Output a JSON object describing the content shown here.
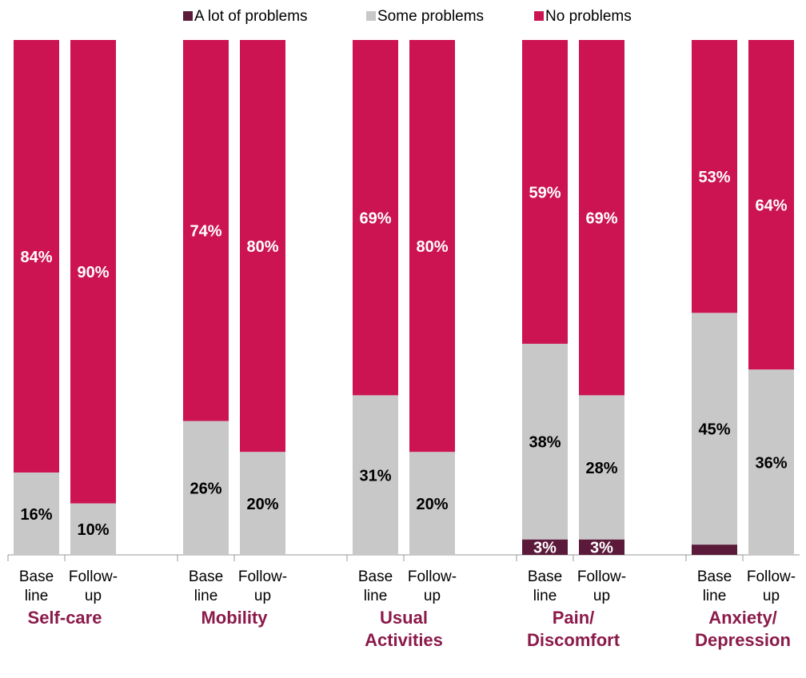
{
  "chart_data": {
    "type": "stacked_bar",
    "categories": [
      [
        "Base",
        "line"
      ],
      [
        "Follow-",
        "up"
      ],
      [
        "Base",
        "line"
      ],
      [
        "Follow-",
        "up"
      ],
      [
        "Base",
        "line"
      ],
      [
        "Follow-",
        "up"
      ],
      [
        "Base",
        "line"
      ],
      [
        "Follow-",
        "up"
      ],
      [
        "Base",
        "line"
      ],
      [
        "Follow-",
        "up"
      ]
    ],
    "groups": [
      [
        "Self-care"
      ],
      [
        "Mobility"
      ],
      [
        "Usual",
        "Activities"
      ],
      [
        "Pain/",
        "Discomfort"
      ],
      [
        "Anxiety/",
        "Depression"
      ]
    ],
    "ylim": [
      0,
      100
    ],
    "legend": "top",
    "series": [
      {
        "name": "A lot of problems",
        "color": "#5b1a3a",
        "label_color": "#ffffff",
        "values": [
          0,
          0,
          0,
          0,
          0,
          0,
          3,
          3,
          2,
          0
        ],
        "value_labels": [
          null,
          null,
          null,
          null,
          null,
          null,
          "3%",
          "3%",
          null,
          null
        ]
      },
      {
        "name": "Some problems",
        "color": "#c8c8c8",
        "label_color": "#000000",
        "values": [
          16,
          10,
          26,
          20,
          31,
          20,
          38,
          28,
          45,
          36
        ],
        "value_labels": [
          "16%",
          "10%",
          "26%",
          "20%",
          "31%",
          "20%",
          "38%",
          "28%",
          "45%",
          "36%"
        ]
      },
      {
        "name": "No problems",
        "color": "#cc1452",
        "label_color": "#ffffff",
        "values": [
          84,
          90,
          74,
          80,
          69,
          80,
          59,
          69,
          53,
          64
        ],
        "value_labels": [
          "84%",
          "90%",
          "74%",
          "80%",
          "69%",
          "80%",
          "59%",
          "69%",
          "53%",
          "64%"
        ]
      }
    ]
  }
}
